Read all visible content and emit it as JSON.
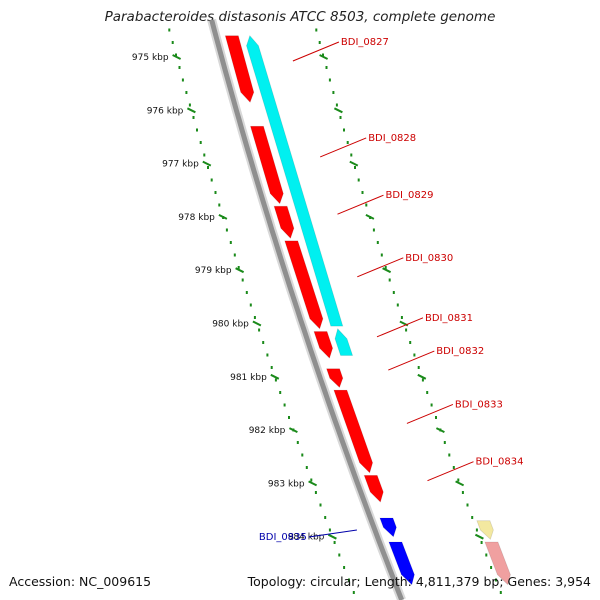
{
  "title": "Parabacteroides distasonis ATCC 8503, complete genome",
  "footer": {
    "accession": "Accession: NC_009615",
    "summary": "Topology: circular; Length: 4,811,379 bp; Genes: 3,954"
  },
  "colors": {
    "backbone": "#8f8f8f",
    "scale": "#1a8a1a",
    "forward_gene": "#ff0000",
    "reverse_gene": "#00f0f0",
    "forward_gene_alt": "#0000ff",
    "pale_gene_yellow": "#f3e8a0",
    "pale_gene_red": "#f0a0a0",
    "label_red": "#cc0000",
    "label_blue": "#0000aa"
  },
  "axis": {
    "unit": "kbp",
    "ticks": [
      {
        "value": 975,
        "label": "975 kbp"
      },
      {
        "value": 976,
        "label": "976 kbp"
      },
      {
        "value": 977,
        "label": "977 kbp"
      },
      {
        "value": 978,
        "label": "978 kbp"
      },
      {
        "value": 979,
        "label": "979 kbp"
      },
      {
        "value": 980,
        "label": "980 kbp"
      },
      {
        "value": 981,
        "label": "981 kbp"
      },
      {
        "value": 982,
        "label": "982 kbp"
      },
      {
        "value": 983,
        "label": "983 kbp"
      },
      {
        "value": 984,
        "label": "984 kbp"
      }
    ]
  },
  "genes": [
    {
      "id": "BDI_0827",
      "start": 974.6,
      "end": 975.85,
      "track": "forward",
      "color": "forward_gene",
      "label_color": "label_red"
    },
    {
      "id": "BDI_0828",
      "start": 976.3,
      "end": 977.75,
      "track": "forward",
      "color": "forward_gene",
      "label_color": "label_red"
    },
    {
      "id": "BDI_0829",
      "start": 977.8,
      "end": 978.4,
      "track": "forward",
      "color": "forward_gene",
      "label_color": "label_red"
    },
    {
      "id": "BDI_0830",
      "start": 978.45,
      "end": 980.1,
      "track": "forward",
      "color": "forward_gene",
      "label_color": "label_red"
    },
    {
      "id": "BDI_0831",
      "start": 980.15,
      "end": 980.65,
      "track": "forward",
      "color": "forward_gene",
      "label_color": "label_red"
    },
    {
      "id": "BDI_0831b",
      "start": 974.6,
      "end": 980.05,
      "track": "reverse",
      "color": "reverse_gene",
      "label_color": "label_red",
      "unlabeled": true
    },
    {
      "id": "BDI_0831c",
      "start": 980.1,
      "end": 980.6,
      "track": "reverse",
      "color": "reverse_gene",
      "label_color": "label_red",
      "unlabeled": true
    },
    {
      "id": "BDI_0832",
      "start": 980.85,
      "end": 981.2,
      "track": "forward",
      "color": "forward_gene",
      "label_color": "label_red"
    },
    {
      "id": "BDI_0833",
      "start": 981.25,
      "end": 982.8,
      "track": "forward",
      "color": "forward_gene",
      "label_color": "label_red"
    },
    {
      "id": "BDI_0834",
      "start": 982.85,
      "end": 983.35,
      "track": "forward",
      "color": "forward_gene",
      "label_color": "label_red"
    },
    {
      "id": "BDI_0835",
      "start": 983.7,
      "end": 984.05,
      "track": "left",
      "color": "pale_gene_yellow",
      "label_color": "label_blue"
    },
    {
      "id": "BDI_0835b",
      "start": 983.65,
      "end": 984.0,
      "track": "forward",
      "color": "forward_gene_alt",
      "label_color": "label_blue",
      "unlabeled": true
    },
    {
      "id": "BDI_0835c",
      "start": 984.1,
      "end": 984.9,
      "track": "left",
      "color": "pale_gene_red",
      "label_color": "label_blue",
      "unlabeled": true
    },
    {
      "id": "BDI_0835d",
      "start": 984.1,
      "end": 984.9,
      "track": "forward",
      "color": "forward_gene_alt",
      "label_color": "label_blue",
      "unlabeled": true
    }
  ]
}
